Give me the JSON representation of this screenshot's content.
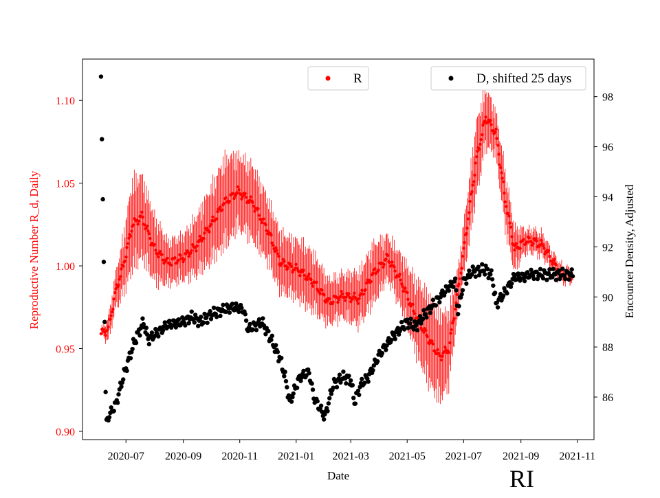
{
  "chart_data": {
    "type": "scatter",
    "stamp": "RI",
    "xlabel": "Date",
    "ylabel_left": "Reproductive Number R_d, Daily",
    "ylabel_right": "Encounter Density, Adjusted",
    "x_range": [
      "2020-05-15",
      "2021-11-19"
    ],
    "ylim_left": [
      0.895,
      1.125
    ],
    "ylim_right": [
      84.3,
      99.5
    ],
    "x_ticks": [
      "2020-07",
      "2020-09",
      "2020-11",
      "2021-01",
      "2021-03",
      "2021-05",
      "2021-07",
      "2021-09",
      "2021-11"
    ],
    "y_ticks_left": [
      "0.90",
      "0.95",
      "1.00",
      "1.05",
      "1.10"
    ],
    "y_ticks_right": [
      "86",
      "88",
      "90",
      "92",
      "94",
      "96",
      "98"
    ],
    "colors": {
      "R": "#ff0000",
      "D": "#000000"
    },
    "legend": [
      {
        "label": "R",
        "color": "#ff0000",
        "placement": "upper-center"
      },
      {
        "label": "D, shifted 25 days",
        "color": "#000000",
        "placement": "upper-right"
      }
    ],
    "series": [
      {
        "name": "R",
        "axis": "left",
        "marker": "dot",
        "error_bars": true,
        "date_format": "YYYY-MM-DD",
        "knots": [
          [
            "2020-06-04",
            0.959,
            0.002
          ],
          [
            "2020-06-12",
            0.962,
            0.008
          ],
          [
            "2020-06-20",
            0.985,
            0.012
          ],
          [
            "2020-06-28",
            1.0,
            0.02
          ],
          [
            "2020-07-08",
            1.025,
            0.03
          ],
          [
            "2020-07-18",
            1.03,
            0.028
          ],
          [
            "2020-08-01",
            1.01,
            0.022
          ],
          [
            "2020-08-15",
            1.002,
            0.015
          ],
          [
            "2020-09-01",
            1.005,
            0.015
          ],
          [
            "2020-09-15",
            1.012,
            0.02
          ],
          [
            "2020-10-01",
            1.025,
            0.025
          ],
          [
            "2020-10-15",
            1.038,
            0.03
          ],
          [
            "2020-10-30",
            1.045,
            0.025
          ],
          [
            "2020-11-15",
            1.038,
            0.025
          ],
          [
            "2020-12-01",
            1.022,
            0.022
          ],
          [
            "2020-12-15",
            1.002,
            0.02
          ],
          [
            "2021-01-05",
            0.997,
            0.02
          ],
          [
            "2021-01-20",
            0.99,
            0.02
          ],
          [
            "2021-02-05",
            0.978,
            0.015
          ],
          [
            "2021-02-20",
            0.982,
            0.015
          ],
          [
            "2021-03-10",
            0.98,
            0.018
          ],
          [
            "2021-03-25",
            0.995,
            0.02
          ],
          [
            "2021-04-10",
            1.005,
            0.015
          ],
          [
            "2021-04-25",
            0.99,
            0.018
          ],
          [
            "2021-05-10",
            0.97,
            0.025
          ],
          [
            "2021-05-25",
            0.955,
            0.03
          ],
          [
            "2021-06-05",
            0.945,
            0.03
          ],
          [
            "2021-06-15",
            0.95,
            0.025
          ],
          [
            "2021-06-25",
            0.985,
            0.015
          ],
          [
            "2021-07-05",
            1.025,
            0.02
          ],
          [
            "2021-07-15",
            1.065,
            0.025
          ],
          [
            "2021-07-25",
            1.09,
            0.02
          ],
          [
            "2021-08-05",
            1.08,
            0.015
          ],
          [
            "2021-08-15",
            1.04,
            0.02
          ],
          [
            "2021-08-25",
            1.01,
            0.015
          ],
          [
            "2021-09-05",
            1.015,
            0.008
          ],
          [
            "2021-09-15",
            1.015,
            0.008
          ],
          [
            "2021-09-25",
            1.012,
            0.008
          ],
          [
            "2021-10-05",
            1.003,
            0.006
          ],
          [
            "2021-10-15",
            0.995,
            0.006
          ],
          [
            "2021-10-27",
            0.994,
            0.004
          ]
        ]
      },
      {
        "name": "D, shifted 25 days",
        "axis": "right",
        "marker": "dot",
        "date_format": "YYYY-MM-DD",
        "knots": [
          [
            "2020-06-04",
            98.8
          ],
          [
            "2020-06-05",
            96.3
          ],
          [
            "2020-06-06",
            93.9
          ],
          [
            "2020-06-07",
            91.4
          ],
          [
            "2020-06-08",
            89.0
          ],
          [
            "2020-06-09",
            86.2
          ],
          [
            "2020-06-10",
            85.1
          ],
          [
            "2020-06-20",
            85.7
          ],
          [
            "2020-06-28",
            86.8
          ],
          [
            "2020-07-10",
            88.2
          ],
          [
            "2020-07-20",
            89.0
          ],
          [
            "2020-07-25",
            88.3
          ],
          [
            "2020-08-05",
            88.6
          ],
          [
            "2020-08-15",
            88.9
          ],
          [
            "2020-09-01",
            89.0
          ],
          [
            "2020-09-10",
            89.2
          ],
          [
            "2020-09-20",
            89.0
          ],
          [
            "2020-10-01",
            89.3
          ],
          [
            "2020-10-15",
            89.5
          ],
          [
            "2020-10-25",
            89.6
          ],
          [
            "2020-11-05",
            89.5
          ],
          [
            "2020-11-10",
            88.7
          ],
          [
            "2020-11-25",
            89.0
          ],
          [
            "2020-12-05",
            88.3
          ],
          [
            "2020-12-15",
            87.5
          ],
          [
            "2020-12-20",
            86.8
          ],
          [
            "2020-12-25",
            85.8
          ],
          [
            "2021-01-05",
            86.8
          ],
          [
            "2021-01-15",
            87.0
          ],
          [
            "2021-01-20",
            86.0
          ],
          [
            "2021-02-01",
            85.2
          ],
          [
            "2021-02-10",
            86.5
          ],
          [
            "2021-02-20",
            86.8
          ],
          [
            "2021-03-01",
            86.7
          ],
          [
            "2021-03-05",
            85.8
          ],
          [
            "2021-03-12",
            86.5
          ],
          [
            "2021-03-20",
            86.8
          ],
          [
            "2021-04-01",
            87.7
          ],
          [
            "2021-04-15",
            88.4
          ],
          [
            "2021-05-01",
            89.0
          ],
          [
            "2021-05-10",
            88.8
          ],
          [
            "2021-05-20",
            89.3
          ],
          [
            "2021-06-01",
            89.8
          ],
          [
            "2021-06-15",
            90.4
          ],
          [
            "2021-06-22",
            90.6
          ],
          [
            "2021-06-25",
            89.4
          ],
          [
            "2021-07-01",
            90.6
          ],
          [
            "2021-07-10",
            91.0
          ],
          [
            "2021-07-25",
            91.1
          ],
          [
            "2021-08-01",
            90.8
          ],
          [
            "2021-08-05",
            89.7
          ],
          [
            "2021-08-15",
            90.2
          ],
          [
            "2021-08-25",
            90.8
          ],
          [
            "2021-09-05",
            90.8
          ],
          [
            "2021-09-10",
            90.9
          ],
          [
            "2021-10-27",
            90.9
          ]
        ]
      }
    ]
  }
}
